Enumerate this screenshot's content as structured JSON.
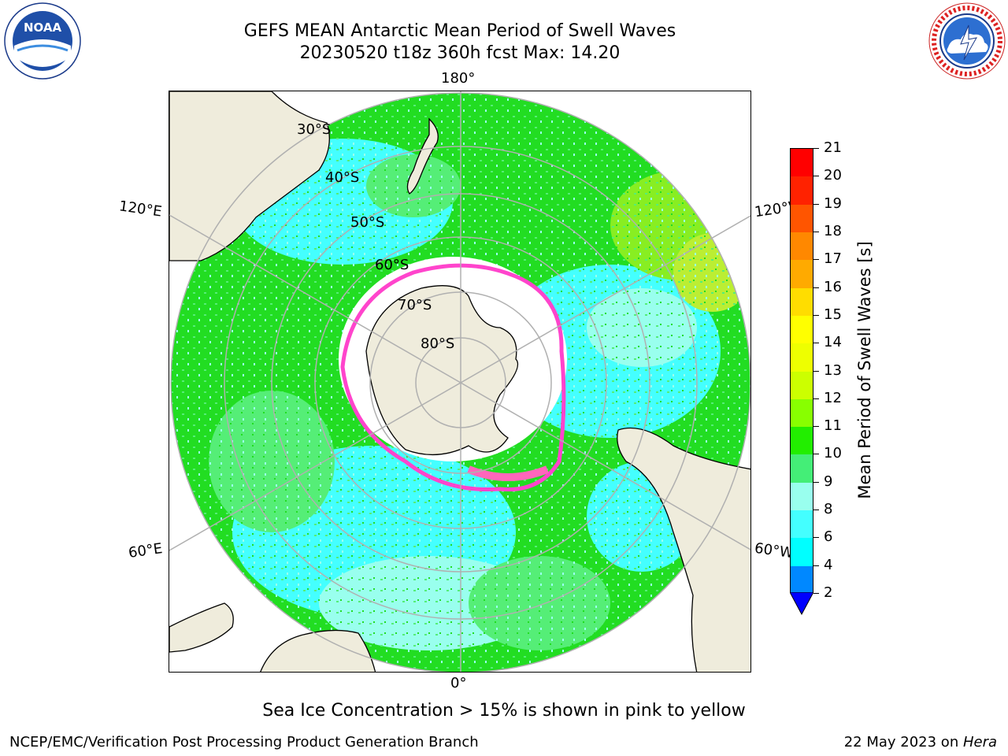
{
  "header": {
    "title_line1": "GEFS MEAN Antarctic Mean Period of Swell Waves",
    "title_line2": "20230520 t18z 360h fcst   Max: 14.20"
  },
  "logos": {
    "noaa_text": "NOAA",
    "noaa_ring_text": "NATIONAL OCEANIC AND ATMOSPHERIC ADMINISTRATION · U.S. DEPARTMENT OF COMMERCE",
    "nws_ring_text": "NATIONAL WEATHER SERVICE"
  },
  "map": {
    "projection": "south-polar-stereographic",
    "longitude_labels": {
      "top": "180°",
      "left_upper": "120°E",
      "right_upper": "120°W",
      "left_lower": "60°E",
      "right_lower": "60°W",
      "bottom": "0°"
    },
    "latitude_labels": [
      "30°S",
      "40°S",
      "50°S",
      "60°S",
      "70°S",
      "80°S"
    ],
    "colors": {
      "land": "#efecdc",
      "ocean_green": "#22dd22",
      "ocean_light_green": "#55ee77",
      "ocean_cyan": "#44ffff",
      "ocean_pale_cyan": "#99ffee",
      "ice_edge": "#ff44cc",
      "ice_yellow": "#ffcc00",
      "gridlines": "#b0b0b0"
    }
  },
  "colorbar": {
    "label": "Mean Period of Swell Waves [s]",
    "ticks": [
      "21",
      "20",
      "19",
      "18",
      "17",
      "16",
      "15",
      "14",
      "13",
      "12",
      "11",
      "10",
      "9",
      "8",
      "6",
      "4",
      "2"
    ],
    "colors_top_to_bottom": [
      "#ff0000",
      "#ff2200",
      "#ff5500",
      "#ff8800",
      "#ffaa00",
      "#ffdd00",
      "#ffff00",
      "#eeff00",
      "#ccff00",
      "#88ff00",
      "#22ee00",
      "#44ee77",
      "#99ffee",
      "#44ffff",
      "#00ffff",
      "#0088ff"
    ],
    "extend_color": "#0000ff"
  },
  "chart_data": {
    "type": "heatmap",
    "title": "GEFS MEAN Antarctic Mean Period of Swell Waves",
    "subtitle": "20230520 t18z 360h fcst   Max: 14.20",
    "variable": "Mean Period of Swell Waves [s]",
    "max_value": 14.2,
    "levels": [
      2,
      4,
      6,
      8,
      9,
      10,
      11,
      12,
      13,
      14,
      15,
      16,
      17,
      18,
      19,
      20,
      21
    ]
  },
  "annotations": {
    "sea_ice_note": "Sea Ice Concentration > 15% is shown in pink to yellow"
  },
  "footer": {
    "left": "NCEP/EMC/Verification Post Processing Product Generation Branch",
    "right_prefix": "22 May 2023 on ",
    "right_host": "Hera"
  }
}
